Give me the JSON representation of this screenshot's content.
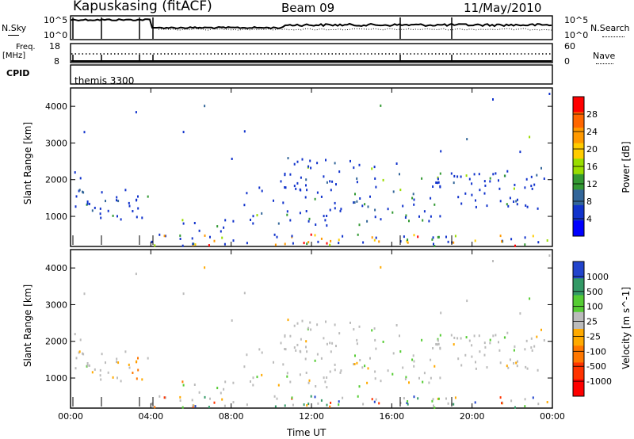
{
  "header": {
    "station": "Kapuskasing (fitACF)",
    "beam": "Beam 09",
    "date": "11/May/2010"
  },
  "top_labels": {
    "nsky": "N.Sky",
    "nsky_scale_top": "10^5",
    "nsky_scale_bottom": "10^0",
    "nsearch": "N.Search",
    "nsearch_scale_top": "10^5",
    "nsearch_scale_bottom": "10^0",
    "freq": "Freq.",
    "freq_unit": "[MHz]",
    "freq_top": "18",
    "freq_bottom": "8",
    "nave": "Nave",
    "nave_top": "60",
    "nave_bottom": "0",
    "cpid": "CPID",
    "program": "themis 3300"
  },
  "chart_data": [
    {
      "type": "heatmap",
      "title": "",
      "ylabel": "Slant Range [km]",
      "xlabel": "",
      "colorbar_label": "Power [dB]",
      "colorbar_ticks": [
        "28",
        "24",
        "20",
        "16",
        "12",
        "8",
        "4"
      ],
      "colorbar_colors": [
        "#ff0000",
        "#ff6600",
        "#ff9900",
        "#ffcc00",
        "#99dd00",
        "#339933",
        "#336699",
        "#1133cc",
        "#0000ff"
      ],
      "ylim": [
        180,
        4500
      ],
      "yticks": [
        "1000",
        "2000",
        "3000",
        "4000"
      ],
      "xlim": [
        "00:00",
        "24:00"
      ]
    },
    {
      "type": "heatmap",
      "title": "",
      "ylabel": "Slant Range [km]",
      "xlabel": "Time UT",
      "colorbar_label": "Velocity [m s^-1]",
      "colorbar_ticks": [
        "1000",
        "500",
        "100",
        "25",
        "-25",
        "-100",
        "-500",
        "-1000"
      ],
      "colorbar_colors": [
        "#2244cc",
        "#339966",
        "#55cc33",
        "#bbbbbb",
        "#ffaa00",
        "#ff7700",
        "#ff3300",
        "#ff0000"
      ],
      "ylim": [
        180,
        4500
      ],
      "yticks": [
        "1000",
        "2000",
        "3000",
        "4000"
      ],
      "xticks": [
        "00:00",
        "04:00",
        "08:00",
        "12:00",
        "16:00",
        "20:00",
        "00:00"
      ]
    }
  ]
}
